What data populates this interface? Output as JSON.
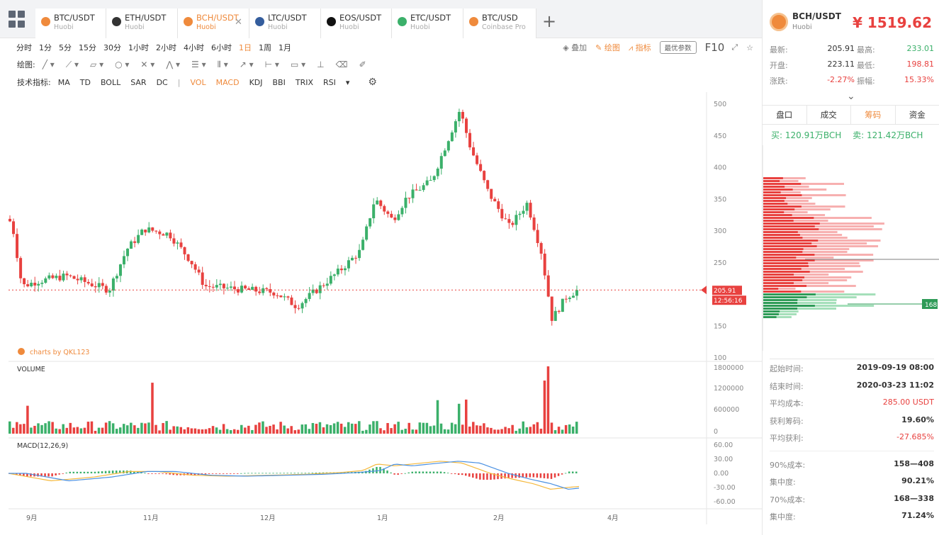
{
  "tabs": [
    {
      "pair": "BTC/USDT",
      "exchange": "Huobi",
      "icon": "bitcoin-icon",
      "color": "#ef8a3c"
    },
    {
      "pair": "ETH/USDT",
      "exchange": "Huobi",
      "icon": "ethereum-icon",
      "color": "#333333"
    },
    {
      "pair": "BCH/USDT",
      "exchange": "Huobi",
      "icon": "bitcoin-cash-icon",
      "color": "#ef8a3c"
    },
    {
      "pair": "LTC/USDT",
      "exchange": "Huobi",
      "icon": "litecoin-icon",
      "color": "#345d9d"
    },
    {
      "pair": "EOS/USDT",
      "exchange": "Huobi",
      "icon": "eos-icon",
      "color": "#111111"
    },
    {
      "pair": "ETC/USDT",
      "exchange": "Huobi",
      "icon": "ethereum-classic-icon",
      "color": "#3bb06a"
    },
    {
      "pair": "BTC/USD",
      "exchange": "Coinbase Pro",
      "icon": "bitcoin-icon",
      "color": "#ef8a3c"
    }
  ],
  "toolbar": {
    "timeframes": [
      "分时",
      "1分",
      "5分",
      "15分",
      "30分",
      "1小时",
      "2小时",
      "4小时",
      "6小时",
      "1日",
      "1周",
      "1月"
    ],
    "active_timeframe": "1日",
    "overlay": "叠加",
    "draw": "绘图",
    "indicator": "指标",
    "best_params": "最优参数",
    "f10": "F10",
    "draw_label": "绘图:",
    "indicator_label": "技术指标:",
    "main_indicators": [
      "MA",
      "TD",
      "BOLL",
      "SAR",
      "DC"
    ],
    "sub_indicators": [
      "VOL",
      "MACD",
      "KDJ",
      "BBI",
      "TRIX",
      "RSI"
    ]
  },
  "chart_data": {
    "type": "candlestick",
    "price_ticks": [
      500,
      450,
      400,
      350,
      300,
      250,
      150,
      100
    ],
    "volume_ticks": [
      "1800000",
      "1200000",
      "600000",
      "0"
    ],
    "macd_ticks": [
      "60.00",
      "30.00",
      "0.00",
      "-30.00",
      "-60.00"
    ],
    "x_labels": [
      "9月",
      "11月",
      "12月",
      "1月",
      "2月",
      "4月"
    ],
    "current_price": "205.91",
    "countdown": "12:56:16",
    "volume_label": "VOLUME",
    "macd_label": "MACD(12,26,9)",
    "watermark": "charts by QKL123",
    "ylim": [
      100,
      510
    ],
    "up_color": "#3bb06a",
    "down_color": "#e8413f"
  },
  "sidebar": {
    "pair": "BCH/USDT",
    "exchange": "Huobi",
    "price": "¥ 1519.62",
    "stats": [
      {
        "k1": "最新:",
        "v1": "205.91",
        "k2": "最高:",
        "v2": "233.01",
        "c2": "#3bb06a",
        "c1": "#333333"
      },
      {
        "k1": "开盘:",
        "v1": "223.11",
        "k2": "最低:",
        "v2": "198.81",
        "c2": "#e8413f",
        "c1": "#333333"
      },
      {
        "k1": "涨跌:",
        "v1": "-2.27%",
        "k2": "振幅:",
        "v2": "15.33%",
        "c2": "#e8413f",
        "c1": "#e8413f"
      }
    ],
    "tabs": [
      "盘口",
      "成交",
      "筹码",
      "资金"
    ],
    "active_tab": "筹码",
    "buy": "买: 120.91万BCH",
    "sell": "卖: 121.42万BCH",
    "depth_marker": "168",
    "info1": [
      {
        "k": "起始时间:",
        "v": "2019-09-19 08:00"
      },
      {
        "k": "结束时间:",
        "v": "2020-03-23 11:02"
      },
      {
        "k": "平均成本:",
        "v": "285.00 USDT",
        "red": true
      },
      {
        "k": "获利筹码:",
        "v": "19.60%"
      },
      {
        "k": "平均获利:",
        "v": "-27.685%",
        "red": true
      }
    ],
    "info2": [
      {
        "k": "90%成本:",
        "v": "158—408"
      },
      {
        "k": "集中度:",
        "v": "90.21%"
      },
      {
        "k": "70%成本:",
        "v": "168—338"
      },
      {
        "k": "集中度:",
        "v": "71.24%"
      }
    ]
  }
}
